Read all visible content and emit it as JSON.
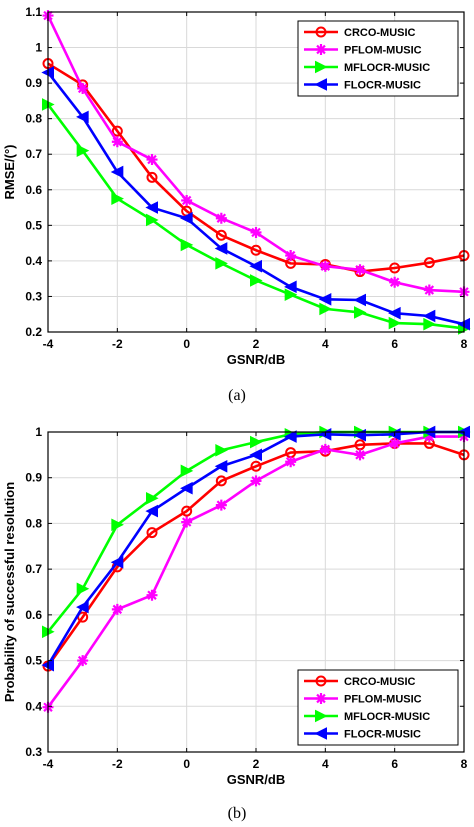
{
  "chart_data": [
    {
      "type": "line",
      "x": [
        -4,
        -3,
        -2,
        -1,
        0,
        1,
        2,
        3,
        4,
        5,
        6,
        7,
        8
      ],
      "xlabel": "GSNR/dB",
      "ylabel": "RMSE/(°)",
      "xlim": [
        -4,
        8
      ],
      "ylim": [
        0.2,
        1.1
      ],
      "xticks": [
        "-4",
        "-2",
        "0",
        "2",
        "4",
        "6",
        "8"
      ],
      "yticks": [
        "0.2",
        "0.3",
        "0.4",
        "0.5",
        "0.6",
        "0.7",
        "0.8",
        "0.9",
        "1",
        "1.1"
      ],
      "grid": true,
      "legend_position": "top-right",
      "caption": "(a)",
      "series": [
        {
          "name": "CRCO-MUSIC",
          "color": "#ff0000",
          "marker": "circle",
          "values": [
            0.955,
            0.895,
            0.765,
            0.635,
            0.54,
            0.472,
            0.43,
            0.393,
            0.39,
            0.37,
            0.38,
            0.395,
            0.415
          ]
        },
        {
          "name": "PFLOM-MUSIC",
          "color": "#ff00ff",
          "marker": "star",
          "values": [
            1.09,
            0.885,
            0.735,
            0.685,
            0.57,
            0.52,
            0.48,
            0.415,
            0.385,
            0.375,
            0.34,
            0.318,
            0.313
          ]
        },
        {
          "name": "MFLOCR-MUSIC",
          "color": "#00ff00",
          "marker": "triangle-right",
          "values": [
            0.84,
            0.71,
            0.575,
            0.515,
            0.445,
            0.393,
            0.345,
            0.305,
            0.265,
            0.255,
            0.225,
            0.222,
            0.21
          ]
        },
        {
          "name": "FLOCR-MUSIC",
          "color": "#0000ff",
          "marker": "triangle-left",
          "values": [
            0.93,
            0.805,
            0.65,
            0.55,
            0.52,
            0.435,
            0.385,
            0.327,
            0.292,
            0.29,
            0.253,
            0.245,
            0.222
          ]
        }
      ]
    },
    {
      "type": "line",
      "x": [
        -4,
        -3,
        -2,
        -1,
        0,
        1,
        2,
        3,
        4,
        5,
        6,
        7,
        8
      ],
      "xlabel": "GSNR/dB",
      "ylabel": "Probability of successful resolution",
      "xlim": [
        -4,
        8
      ],
      "ylim": [
        0.3,
        1
      ],
      "xticks": [
        "-4",
        "-2",
        "0",
        "2",
        "4",
        "6",
        "8"
      ],
      "yticks": [
        "0.3",
        "0.4",
        "0.5",
        "0.6",
        "0.7",
        "0.8",
        "0.9",
        "1"
      ],
      "grid": true,
      "legend_position": "bottom-right",
      "caption": "(b)",
      "series": [
        {
          "name": "CRCO-MUSIC",
          "color": "#ff0000",
          "marker": "circle",
          "values": [
            0.488,
            0.595,
            0.705,
            0.78,
            0.827,
            0.893,
            0.925,
            0.955,
            0.958,
            0.972,
            0.975,
            0.975,
            0.95
          ]
        },
        {
          "name": "PFLOM-MUSIC",
          "color": "#ff00ff",
          "marker": "star",
          "values": [
            0.398,
            0.5,
            0.612,
            0.643,
            0.803,
            0.84,
            0.893,
            0.935,
            0.962,
            0.95,
            0.975,
            0.99,
            0.99
          ]
        },
        {
          "name": "MFLOCR-MUSIC",
          "color": "#00ff00",
          "marker": "triangle-right",
          "values": [
            0.563,
            0.657,
            0.797,
            0.855,
            0.915,
            0.96,
            0.978,
            0.995,
            1.0,
            1.0,
            1.0,
            1.0,
            1.0
          ]
        },
        {
          "name": "FLOCR-MUSIC",
          "color": "#0000ff",
          "marker": "triangle-left",
          "values": [
            0.49,
            0.617,
            0.715,
            0.827,
            0.877,
            0.925,
            0.95,
            0.99,
            0.995,
            0.993,
            0.995,
            1.0,
            1.0
          ]
        }
      ]
    }
  ]
}
